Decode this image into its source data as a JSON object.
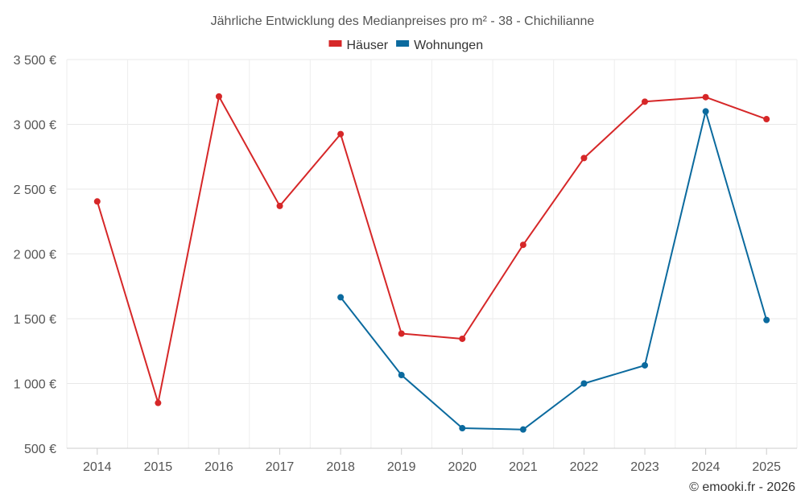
{
  "chart_data": {
    "type": "line",
    "title": "Jährliche Entwicklung des Medianpreises pro m² - 38 - Chichilianne",
    "categories": [
      "2014",
      "2015",
      "2016",
      "2017",
      "2018",
      "2019",
      "2020",
      "2021",
      "2022",
      "2023",
      "2024",
      "2025"
    ],
    "series": [
      {
        "name": "Häuser",
        "color": "#d62728",
        "values": [
          2405,
          850,
          3215,
          2370,
          2925,
          1385,
          1345,
          2070,
          2740,
          3175,
          3210,
          3040
        ]
      },
      {
        "name": "Wohnungen",
        "color": "#0b6a9e",
        "values": [
          null,
          null,
          null,
          null,
          1665,
          1065,
          655,
          645,
          1000,
          1140,
          3100,
          1490
        ]
      }
    ],
    "ylim": [
      500,
      3500
    ],
    "yticks": [
      500,
      1000,
      1500,
      2000,
      2500,
      3000,
      3500
    ],
    "ytick_labels": [
      "500 €",
      "1 000 €",
      "1 500 €",
      "2 000 €",
      "2 500 €",
      "3 000 €",
      "3 500 €"
    ],
    "xlabel": "",
    "ylabel": "",
    "grid": true,
    "legend_position": "top-center"
  },
  "credit": "© emooki.fr - 2026"
}
